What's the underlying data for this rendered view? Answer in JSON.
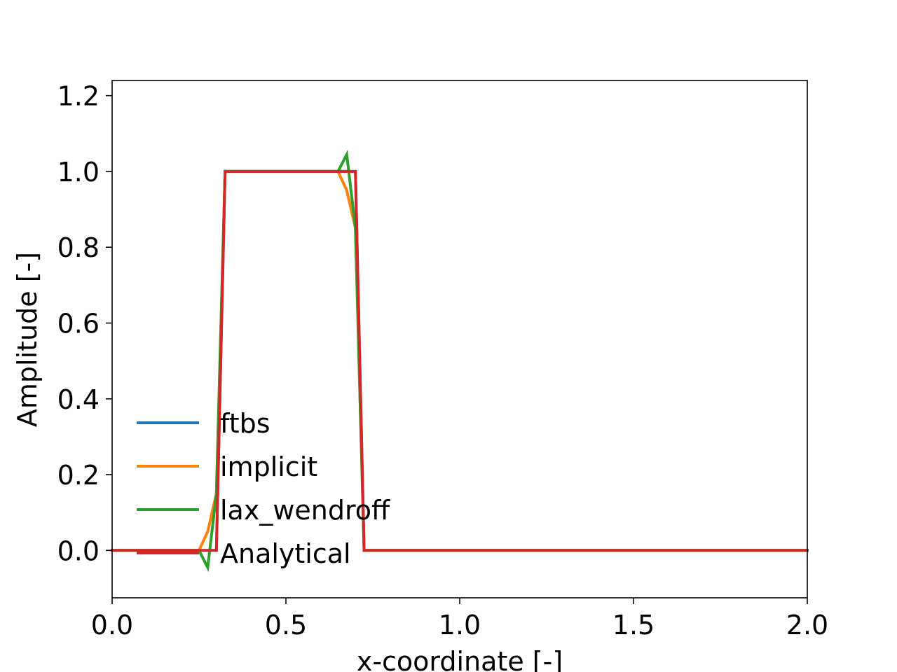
{
  "chart_data": {
    "type": "line",
    "title": "",
    "xlabel": "x-coordinate [-]",
    "ylabel": "Amplitude [-]",
    "xlim": [
      0.0,
      2.0
    ],
    "ylim": [
      -0.125,
      1.24
    ],
    "x_ticks": [
      "0.0",
      "0.5",
      "1.0",
      "1.5",
      "2.0"
    ],
    "y_ticks": [
      "0.0",
      "0.2",
      "0.4",
      "0.6",
      "0.8",
      "1.0",
      "1.2"
    ],
    "grid": false,
    "legend_position": "lower-left",
    "series": [
      {
        "name": "ftbs",
        "color": "#1f77b4",
        "x": [
          0.0,
          0.25,
          0.275,
          0.3,
          0.325,
          0.65,
          0.675,
          0.7,
          0.725,
          2.0
        ],
        "y": [
          0.0,
          0.0,
          0.0,
          0.0,
          1.0,
          1.0,
          1.0,
          1.0,
          0.0,
          0.0
        ]
      },
      {
        "name": "implicit",
        "color": "#ff7f0e",
        "x": [
          0.0,
          0.25,
          0.275,
          0.3,
          0.325,
          0.65,
          0.675,
          0.7,
          0.725,
          2.0
        ],
        "y": [
          0.0,
          0.0,
          0.05,
          0.15,
          1.0,
          1.0,
          0.95,
          0.85,
          0.0,
          0.0
        ]
      },
      {
        "name": "lax_wendroff",
        "color": "#2ca02c",
        "x": [
          0.0,
          0.25,
          0.275,
          0.3,
          0.325,
          0.65,
          0.675,
          0.7,
          0.725,
          2.0
        ],
        "y": [
          0.0,
          0.0,
          -0.045,
          0.15,
          1.0,
          1.0,
          1.045,
          0.85,
          0.0,
          0.0
        ]
      },
      {
        "name": "Analytical",
        "color": "#d62728",
        "x": [
          0.0,
          0.3,
          0.325,
          0.7,
          0.725,
          2.0
        ],
        "y": [
          0.0,
          0.0,
          1.0,
          1.0,
          0.0,
          0.0
        ]
      }
    ]
  }
}
